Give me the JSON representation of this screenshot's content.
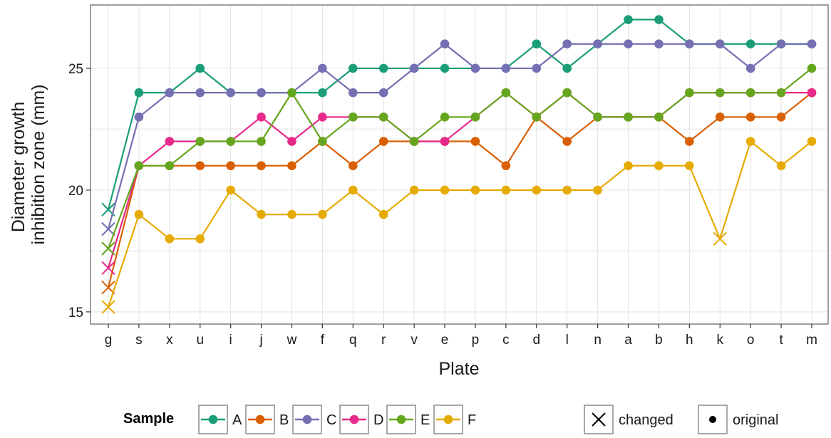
{
  "chart_data": {
    "type": "line",
    "xlabel": "Plate",
    "ylabel_line1": "Diameter growth",
    "ylabel_line2": "inhibition zone (mm)",
    "categories": [
      "g",
      "s",
      "x",
      "u",
      "i",
      "j",
      "w",
      "f",
      "q",
      "r",
      "v",
      "e",
      "p",
      "c",
      "d",
      "l",
      "n",
      "a",
      "b",
      "h",
      "k",
      "o",
      "t",
      "m"
    ],
    "ylim": [
      14.5,
      27.6
    ],
    "yticks": [
      15,
      20,
      25
    ],
    "grid": true,
    "legend_placement": "bottom",
    "series": [
      {
        "name": "A",
        "color": "#1b9e77",
        "values": [
          19.2,
          24,
          24,
          25,
          24,
          24,
          24,
          24,
          25,
          25,
          25,
          25,
          25,
          25,
          26,
          25,
          26,
          27,
          27,
          26,
          26,
          26,
          26,
          26
        ],
        "markers": [
          "changed",
          "original",
          "original",
          "original",
          "original",
          "original",
          "original",
          "original",
          "original",
          "original",
          "original",
          "original",
          "original",
          "original",
          "original",
          "original",
          "original",
          "original",
          "original",
          "original",
          "original",
          "original",
          "original",
          "original"
        ]
      },
      {
        "name": "B",
        "color": "#d95f02",
        "values": [
          16,
          21,
          21,
          21,
          21,
          21,
          21,
          22,
          21,
          22,
          22,
          22,
          22,
          21,
          23,
          22,
          23,
          23,
          23,
          22,
          23,
          23,
          23,
          24
        ],
        "markers": [
          "changed",
          "original",
          "original",
          "original",
          "original",
          "original",
          "original",
          "original",
          "original",
          "original",
          "original",
          "original",
          "original",
          "original",
          "original",
          "original",
          "original",
          "original",
          "original",
          "original",
          "original",
          "original",
          "original",
          "original"
        ]
      },
      {
        "name": "C",
        "color": "#7570b3",
        "values": [
          18.4,
          23,
          24,
          24,
          24,
          24,
          24,
          25,
          24,
          24,
          25,
          26,
          25,
          25,
          25,
          26,
          26,
          26,
          26,
          26,
          26,
          25,
          26,
          26
        ],
        "markers": [
          "changed",
          "original",
          "original",
          "original",
          "original",
          "original",
          "original",
          "original",
          "original",
          "original",
          "original",
          "original",
          "original",
          "original",
          "original",
          "original",
          "original",
          "original",
          "original",
          "original",
          "original",
          "original",
          "original",
          "original"
        ]
      },
      {
        "name": "D",
        "color": "#e7298a",
        "values": [
          16.8,
          21,
          22,
          22,
          22,
          23,
          22,
          23,
          23,
          23,
          22,
          22,
          23,
          24,
          23,
          24,
          23,
          23,
          23,
          24,
          24,
          24,
          24,
          24
        ],
        "markers": [
          "changed",
          "original",
          "original",
          "original",
          "original",
          "original",
          "original",
          "original",
          "original",
          "original",
          "original",
          "original",
          "original",
          "original",
          "original",
          "original",
          "original",
          "original",
          "original",
          "original",
          "original",
          "original",
          "original",
          "original"
        ]
      },
      {
        "name": "E",
        "color": "#66a61e",
        "values": [
          17.6,
          21,
          21,
          22,
          22,
          22,
          24,
          22,
          23,
          23,
          22,
          23,
          23,
          24,
          23,
          24,
          23,
          23,
          23,
          24,
          24,
          24,
          24,
          25
        ],
        "markers": [
          "changed",
          "original",
          "original",
          "original",
          "original",
          "original",
          "original",
          "original",
          "original",
          "original",
          "original",
          "original",
          "original",
          "original",
          "original",
          "original",
          "original",
          "original",
          "original",
          "original",
          "original",
          "original",
          "original",
          "original"
        ]
      },
      {
        "name": "F",
        "color": "#e6ab02",
        "values": [
          15.2,
          19,
          18,
          18,
          20,
          19,
          19,
          19,
          20,
          19,
          20,
          20,
          20,
          20,
          20,
          20,
          20,
          21,
          21,
          21,
          18,
          22,
          21,
          22
        ],
        "markers": [
          "changed",
          "original",
          "original",
          "original",
          "original",
          "original",
          "original",
          "original",
          "original",
          "original",
          "original",
          "original",
          "original",
          "original",
          "original",
          "original",
          "original",
          "original",
          "original",
          "original",
          "changed",
          "original",
          "original",
          "original"
        ]
      }
    ]
  },
  "legend": {
    "title": "Sample",
    "shape_items": [
      {
        "symbol": "changed",
        "label": "changed"
      },
      {
        "symbol": "original",
        "label": "original"
      }
    ]
  }
}
